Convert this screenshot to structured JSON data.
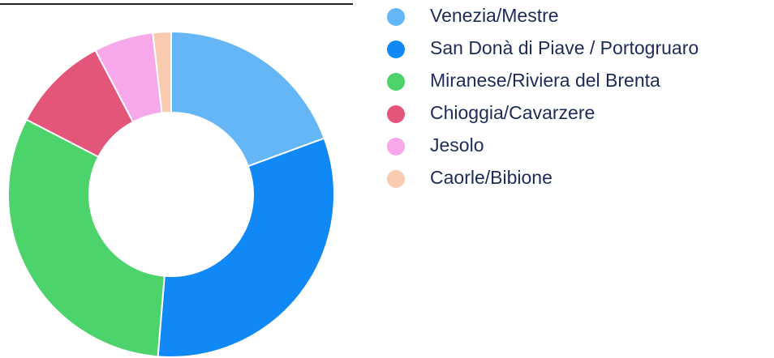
{
  "chart_data": {
    "type": "donut",
    "categories": [
      "Venezia/Mestre",
      "San Donà di Piave / Portogruaro",
      "Miranese/Riviera del Brenta",
      "Chioggia/Cavarzere",
      "Jesolo",
      "Caorle/Bibione"
    ],
    "values": [
      19.4,
      31.9,
      31.3,
      9.7,
      5.9,
      1.8
    ],
    "colors": [
      "#64b6f6",
      "#1088f6",
      "#4dd36b",
      "#e4557a",
      "#f6a8ea",
      "#f8cbb0"
    ],
    "legend": "right"
  }
}
